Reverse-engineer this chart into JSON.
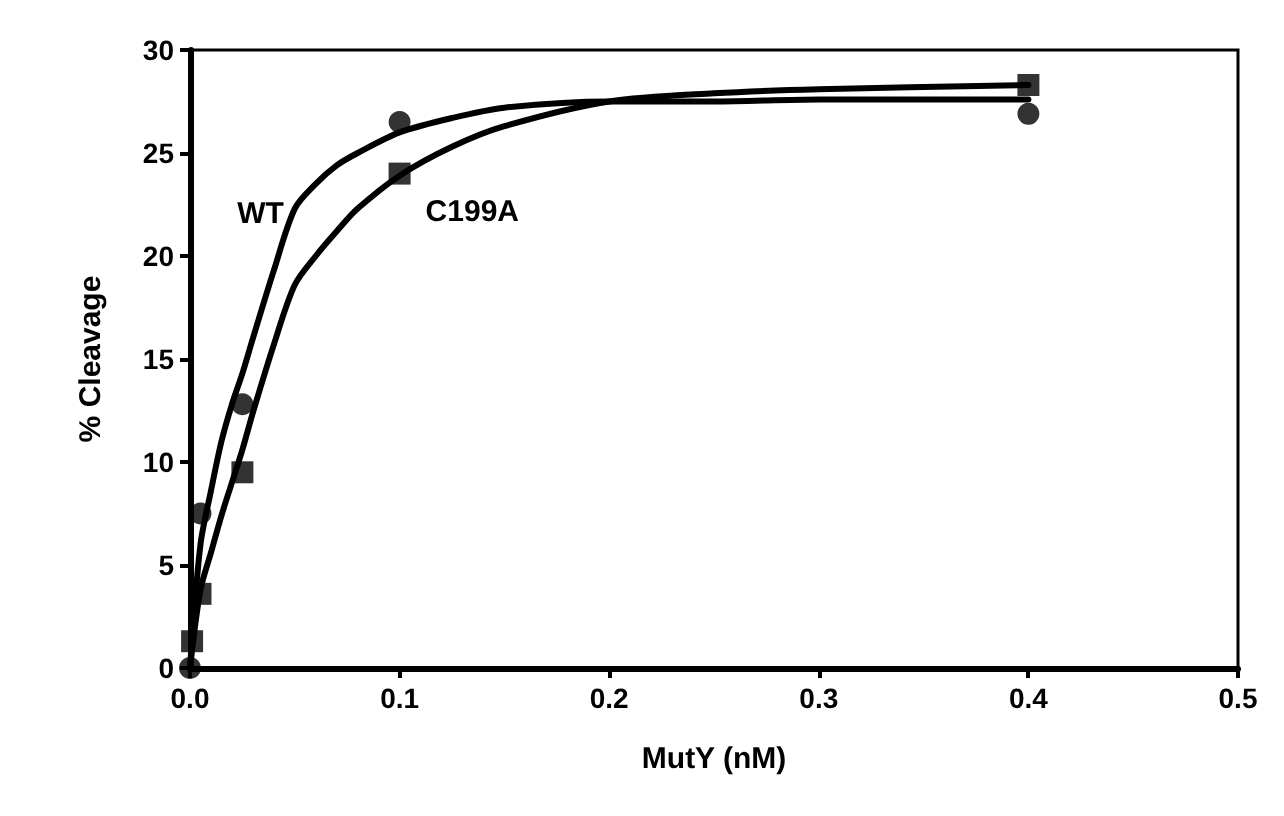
{
  "chart_data": {
    "type": "scatter",
    "xlabel": "MutY (nM)",
    "ylabel": "% Cleavage",
    "xlim": [
      0,
      0.5
    ],
    "ylim": [
      0,
      30
    ],
    "xticks": [
      {
        "value": 0,
        "label": "0.0"
      },
      {
        "value": 0.1,
        "label": "0.1"
      },
      {
        "value": 0.2,
        "label": "0.2"
      },
      {
        "value": 0.3,
        "label": "0.3"
      },
      {
        "value": 0.4,
        "label": "0.4"
      },
      {
        "value": 0.5,
        "label": "0.5"
      }
    ],
    "yticks": [
      0,
      5,
      10,
      15,
      20,
      25,
      30
    ],
    "grid": false,
    "series": [
      {
        "type": "scatter",
        "marker": "circle",
        "color": "#000000",
        "x": [
          0,
          0.005,
          0.025,
          0.1,
          0.4
        ],
        "values": [
          0,
          7.5,
          12.8,
          26.5,
          26.9
        ]
      },
      {
        "type": "scatter",
        "marker": "square",
        "color": "#000000",
        "x": [
          0.001,
          0.005,
          0.025,
          0.1,
          0.4
        ],
        "values": [
          1.3,
          3.6,
          9.5,
          24.0,
          28.3
        ]
      },
      {
        "type": "line",
        "name": "WT",
        "marker": "none",
        "line_style": "solid",
        "color": "#000000",
        "x": [
          0,
          0.005,
          0.01,
          0.015,
          0.02,
          0.025,
          0.03,
          0.04,
          0.05,
          0.06,
          0.07,
          0.08,
          0.1,
          0.125,
          0.15,
          0.2,
          0.25,
          0.3,
          0.4
        ],
        "values": [
          0,
          6.0,
          8.6,
          11.0,
          12.8,
          14.3,
          16.0,
          19.3,
          22.3,
          23.5,
          24.4,
          25.0,
          26.0,
          26.7,
          27.2,
          27.5,
          27.5,
          27.6,
          27.6
        ]
      },
      {
        "type": "line",
        "name": "C199A",
        "marker": "none",
        "line_style": "solid",
        "color": "#000000",
        "x": [
          0,
          0.005,
          0.01,
          0.015,
          0.02,
          0.025,
          0.03,
          0.04,
          0.05,
          0.06,
          0.07,
          0.08,
          0.1,
          0.125,
          0.15,
          0.2,
          0.25,
          0.3,
          0.4
        ],
        "values": [
          0,
          3.8,
          5.6,
          7.4,
          9.0,
          10.6,
          12.4,
          15.7,
          18.6,
          20.0,
          21.2,
          22.3,
          23.9,
          25.3,
          26.3,
          27.5,
          27.9,
          28.1,
          28.3
        ]
      }
    ]
  }
}
